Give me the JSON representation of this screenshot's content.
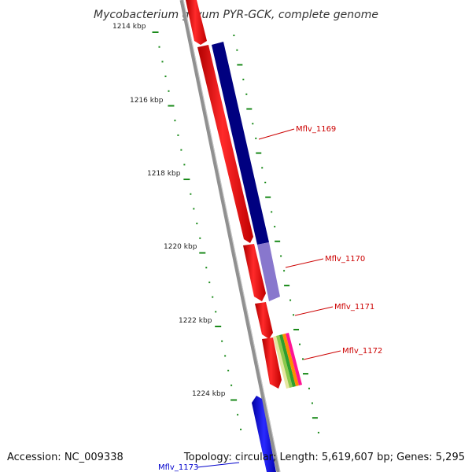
{
  "title": "Mycobacterium gilvum PYR-GCK, complete genome",
  "footer": {
    "accession": "Accession: NC_009338",
    "summary": "Topology: circular; Length: 5,619,607 bp; Genes: 5,295"
  },
  "tick_labels": [
    "1214 kbp",
    "1216 kbp",
    "1218 kbp",
    "1220 kbp",
    "1222 kbp",
    "1224 kbp"
  ],
  "gene_labels": [
    {
      "name": "Mflv_1169",
      "color": "#cc0000"
    },
    {
      "name": "Mflv_1170",
      "color": "#cc0000"
    },
    {
      "name": "Mflv_1171",
      "color": "#cc0000"
    },
    {
      "name": "Mflv_1172",
      "color": "#cc0000"
    },
    {
      "name": "Mflv_1173",
      "color": "#0000cc"
    }
  ],
  "colors": {
    "backbone": "#8a8a8a",
    "forward_gene": "#ff0000",
    "reverse_gene": "#0000ff",
    "dark_feature": "#000080",
    "light_feature": "#7b68c8",
    "tick": "#1a8a1a"
  }
}
